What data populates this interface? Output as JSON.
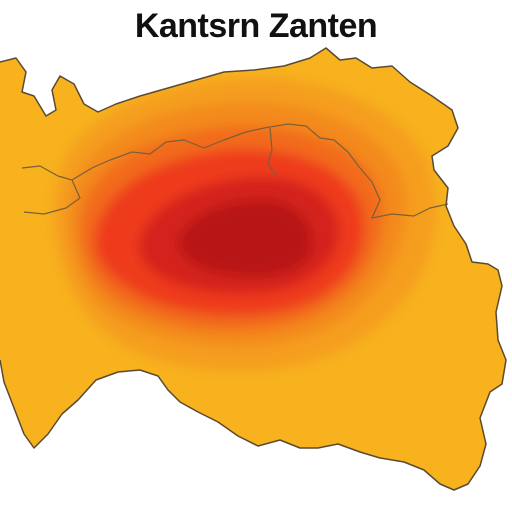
{
  "title": "Kantsrn Zanten",
  "colors": {
    "background": "#ffffff",
    "outline": "#5a4a32",
    "borders": "#7a6038",
    "heat_low": "#f7b21e",
    "heat_mid": "#f38a1d",
    "heat_high": "#ee3b1e",
    "heat_peak": "#b81618"
  }
}
